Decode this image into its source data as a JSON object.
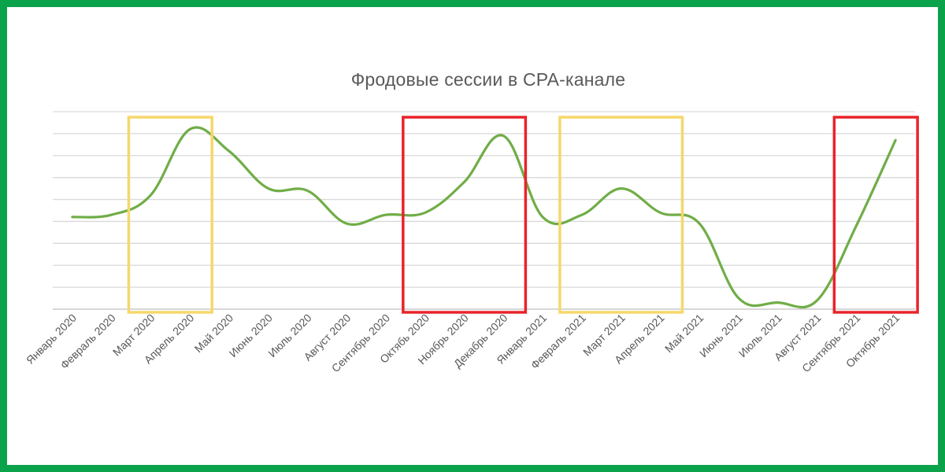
{
  "chart_data": {
    "type": "line",
    "title": "Фродовые сессии в CPA-канале",
    "xlabel": "",
    "ylabel": "",
    "categories": [
      "Январь 2020",
      "Февраль 2020",
      "Март 2020",
      "Апрель 2020",
      "Май 2020",
      "Июнь 2020",
      "Июль 2020",
      "Август 2020",
      "Сентябрь 2020",
      "Октябь 2020",
      "Ноябрь 2020",
      "Декабрь 2020",
      "Январь 2021",
      "Февраль 2021",
      "Март 2021",
      "Апрель 2021",
      "Май 2021",
      "Июнь 2021",
      "Июль 2021",
      "Август 2021",
      "Сентябрь 2021",
      "Октябрь 2021"
    ],
    "series": [
      {
        "color": "#70ad47",
        "values": [
          4.2,
          4.3,
          5.2,
          8.2,
          7.2,
          5.5,
          5.4,
          3.9,
          4.3,
          4.4,
          5.8,
          7.9,
          4.2,
          4.3,
          5.5,
          4.4,
          3.9,
          0.5,
          0.3,
          0.4,
          3.8,
          7.7
        ]
      }
    ],
    "ylim": [
      0,
      9
    ],
    "y_gridlines": 9,
    "y_tick_labels_visible": false,
    "grid": true,
    "highlight_boxes": [
      {
        "from": "Март 2020",
        "to": "Апрель 2020",
        "color": "#f6d76b"
      },
      {
        "from": "Октябь 2020",
        "to": "Декабрь 2020",
        "color": "#e8242a"
      },
      {
        "from": "Февраль 2021",
        "to": "Апрель 2021",
        "color": "#f6d76b"
      },
      {
        "from": "Сентябрь 2021",
        "to": "Октябрь 2021",
        "color": "#e8242a"
      }
    ]
  },
  "colors": {
    "frame": "#0aa24a",
    "grid": "#d9d9d9",
    "line": "#70ad47",
    "text": "#595959"
  }
}
